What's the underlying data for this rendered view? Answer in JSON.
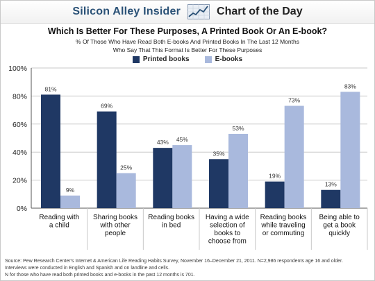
{
  "header": {
    "brand": "Silicon Alley Insider",
    "section": "Chart of the Day",
    "logo_icon": "line-chart-icon"
  },
  "colors": {
    "printed": "#1f3864",
    "ebooks": "#a9b9dd",
    "grid": "#c8c8c8",
    "axis": "#555555"
  },
  "chart_data": {
    "type": "bar",
    "title": "Which Is Better For These Purposes, A Printed Book Or An E-book?",
    "subtitle": [
      "% Of Those Who Have Read Both E-books And Printed Books In The Last 12 Months",
      "Who Say That This Format Is Better For These Purposes"
    ],
    "categories": [
      [
        "Reading with",
        "a child"
      ],
      [
        "Sharing books",
        "with other",
        "people"
      ],
      [
        "Reading books",
        "in bed"
      ],
      [
        "Having a wide",
        "selection of",
        "books to",
        "choose from"
      ],
      [
        "Reading books",
        "while traveling",
        "or commuting"
      ],
      [
        "Being able to",
        "get a book",
        "quickly"
      ]
    ],
    "series": [
      {
        "name": "Printed books",
        "values": [
          81,
          69,
          43,
          35,
          19,
          13
        ]
      },
      {
        "name": "E-books",
        "values": [
          9,
          25,
          45,
          53,
          73,
          83
        ]
      }
    ],
    "value_suffix": "%",
    "ylim": [
      0,
      100
    ],
    "yticks": [
      "0%",
      "20%",
      "40%",
      "60%",
      "80%",
      "100%"
    ],
    "ytick_values": [
      0,
      20,
      40,
      60,
      80,
      100
    ],
    "grid": true,
    "legend": "top-center"
  },
  "source": [
    "Source: Pew Research Center's Internet & American Life Reading Habits Survey, November 16–December 21, 2011. N=2,986 respondents age 16 and older.",
    "Interviews were conducted in English and Spanish and on landline and cells.",
    "N for those who have read both printed books and e-books in the past 12 months is 701."
  ]
}
